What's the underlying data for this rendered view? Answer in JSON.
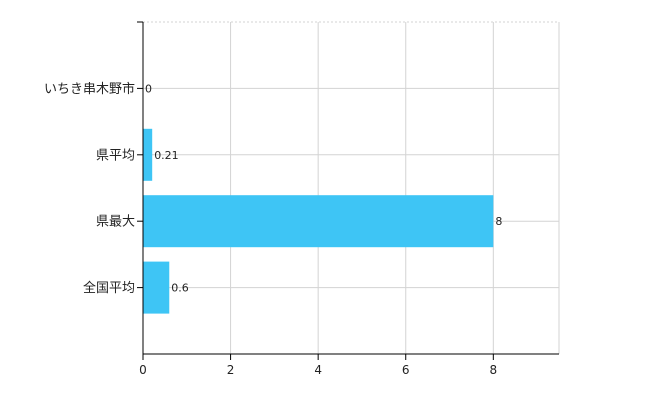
{
  "chart_data": {
    "type": "bar",
    "orientation": "horizontal",
    "categories": [
      "いちき串木野市",
      "県平均",
      "県最大",
      "全国平均"
    ],
    "values": [
      0,
      0.21,
      8,
      0.6
    ],
    "data_labels": [
      "0",
      "0.21",
      "8",
      "0.6"
    ],
    "title": "",
    "xlabel": "",
    "ylabel": "",
    "xlim": [
      0,
      9.5
    ],
    "x_ticks": [
      0,
      2,
      4,
      6,
      8
    ],
    "grid": true,
    "legend": "none",
    "bar_color": "#3EC5F5",
    "grid_color": "#d3d3d3",
    "axis_color": "#000000"
  }
}
